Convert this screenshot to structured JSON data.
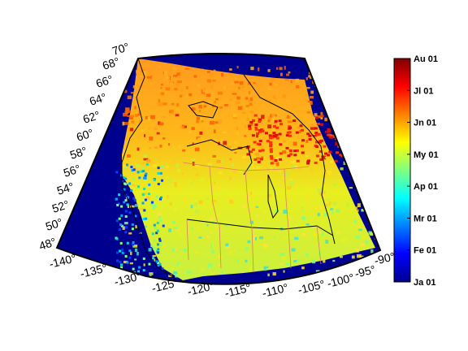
{
  "map": {
    "projection": "conic",
    "lat_ticks": [
      "48",
      "50",
      "52",
      "54",
      "56",
      "58",
      "60",
      "62",
      "64",
      "66",
      "68",
      "70"
    ],
    "lon_ticks": [
      "-140",
      "-135",
      "-130",
      "-125",
      "-120",
      "-115",
      "-110",
      "-105",
      "-100",
      "-95",
      "-90"
    ],
    "degree_symbol": "°",
    "ocean_color": "#00008F",
    "boundary_color": "#000000",
    "political_boundary_color": "#D88060"
  },
  "colorbar": {
    "colormap": "jet",
    "labels": [
      "Au 01",
      "Jl 01",
      "Jn 01",
      "My 01",
      "Ap 01",
      "Mr 01",
      "Fe 01",
      "Ja 01"
    ]
  }
}
